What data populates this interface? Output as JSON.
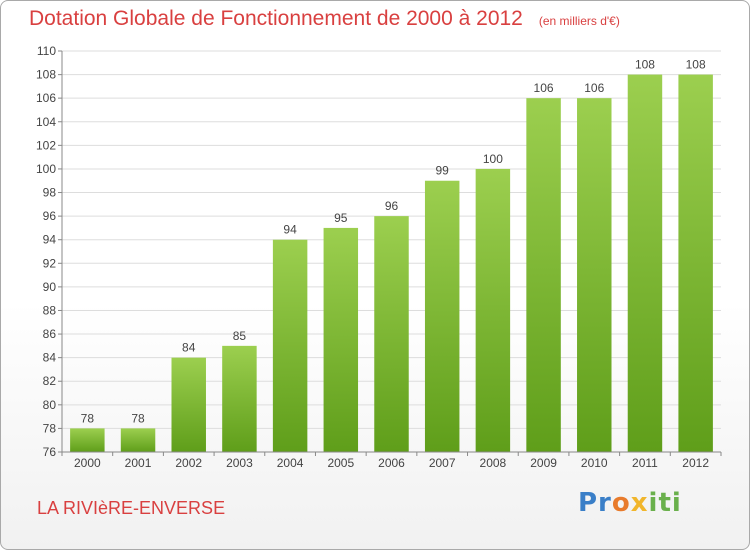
{
  "header": {
    "title": "Dotation Globale de Fonctionnement de 2000 à 2012",
    "unit": "(en milliers d'€)"
  },
  "commune": "LA RIVIèRE-ENVERSE",
  "logo": {
    "parts": [
      "Pr",
      "o",
      "x",
      "iti"
    ],
    "colors": [
      "#3a7fc8",
      "#e87b2c",
      "#f1b62c",
      "#6ab04c"
    ]
  },
  "chart_data": {
    "type": "bar",
    "title": "Dotation Globale de Fonctionnement de 2000 à 2012",
    "subtitle": "(en milliers d'€)",
    "xlabel": "",
    "ylabel": "",
    "categories": [
      "2000",
      "2001",
      "2002",
      "2003",
      "2004",
      "2005",
      "2006",
      "2007",
      "2008",
      "2009",
      "2010",
      "2011",
      "2012"
    ],
    "values": [
      78,
      78,
      84,
      85,
      94,
      95,
      96,
      99,
      100,
      106,
      106,
      108,
      108
    ],
    "ylim": [
      76,
      110
    ],
    "yticks": [
      76,
      78,
      80,
      82,
      84,
      86,
      88,
      90,
      92,
      94,
      96,
      98,
      100,
      102,
      104,
      106,
      108,
      110
    ],
    "grid": true,
    "legend": "none",
    "bar_color_top": "#9ccf4f",
    "bar_color_bottom": "#5f9e1a",
    "grid_color": "#dddddd",
    "title_color": "#d94040"
  }
}
